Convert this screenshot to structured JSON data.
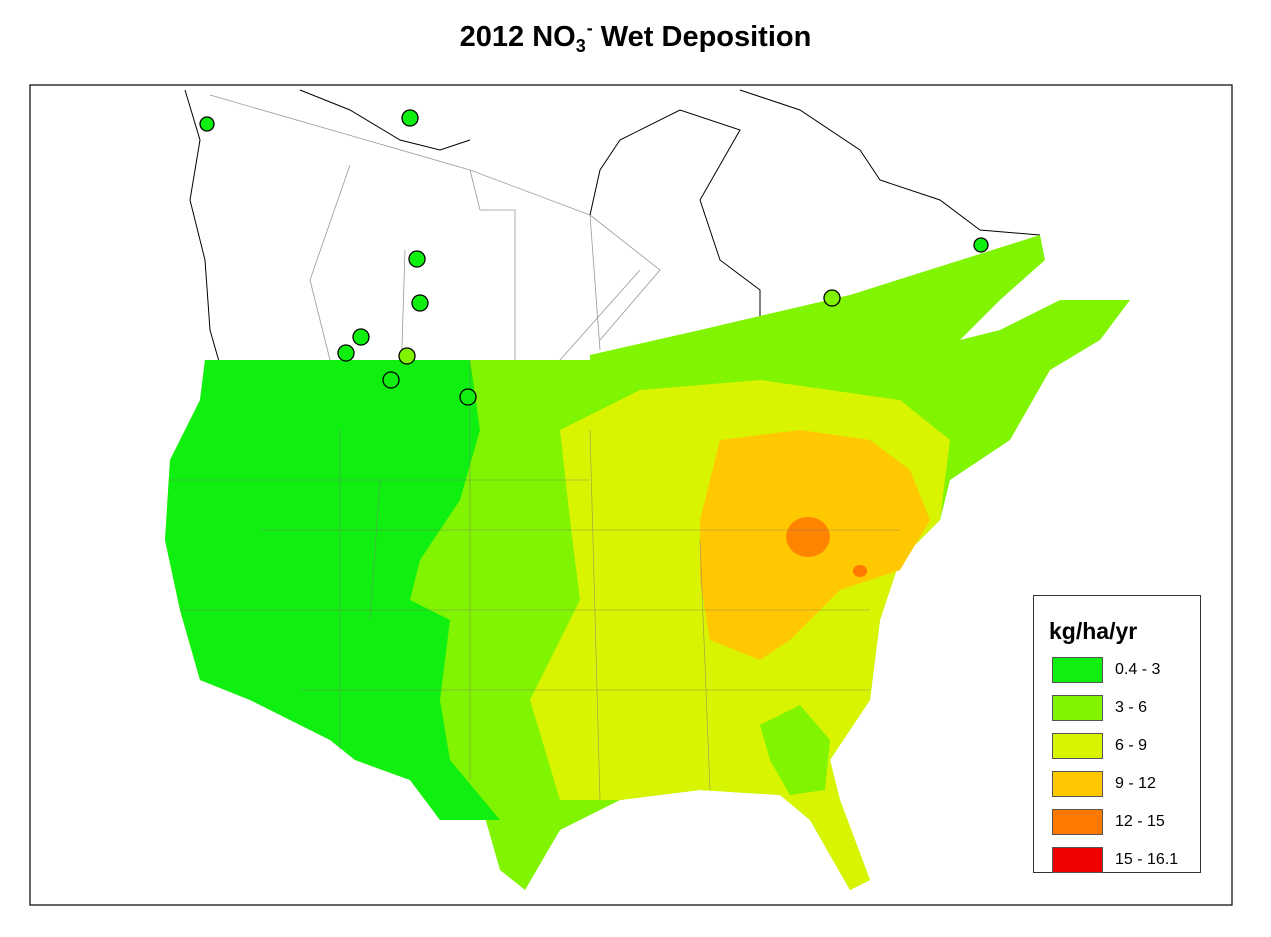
{
  "title": {
    "prefix": "2012 NO",
    "subscript": "3",
    "superscript": "-",
    "suffix": " Wet Deposition"
  },
  "legend": {
    "title": "kg/ha/yr",
    "items": [
      {
        "label": "0.4 - 3",
        "color": "#10F010"
      },
      {
        "label": "3 - 6",
        "color": "#80F400"
      },
      {
        "label": "6 - 9",
        "color": "#D8F400"
      },
      {
        "label": "9 - 12",
        "color": "#FFC800"
      },
      {
        "label": "12 - 15",
        "color": "#FF7800"
      },
      {
        "label": "15 - 16.1",
        "color": "#F00000"
      }
    ]
  }
}
